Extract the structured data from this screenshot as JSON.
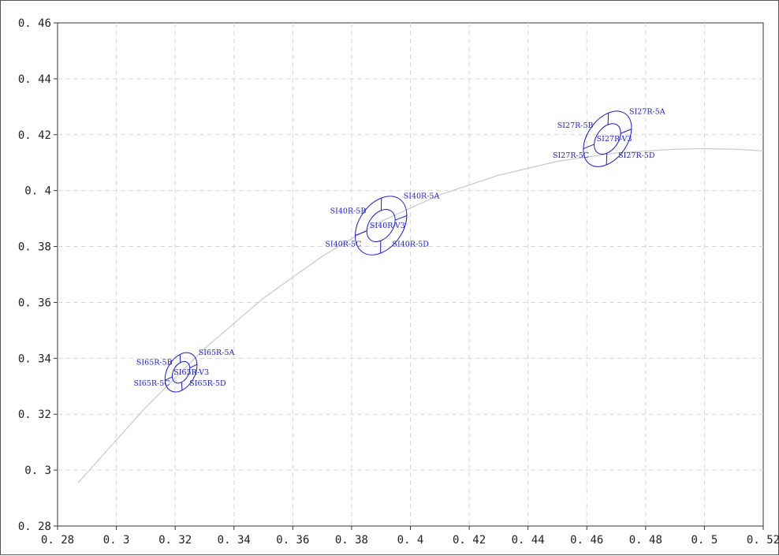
{
  "chart_data": {
    "type": "scatter",
    "title": "",
    "xlabel": "",
    "ylabel": "",
    "xlim": [
      0.28,
      0.52
    ],
    "ylim": [
      0.28,
      0.46
    ],
    "xticks": [
      "0. 28",
      "0. 3",
      "0. 32",
      "0. 34",
      "0. 36",
      "0. 38",
      "0. 4",
      "0. 42",
      "0. 44",
      "0. 46",
      "0. 48",
      "0. 5",
      "0. 52"
    ],
    "yticks": [
      "0. 28",
      "0. 3",
      "0. 32",
      "0. 34",
      "0. 36",
      "0. 38",
      "0. 4",
      "0. 42",
      "0. 44",
      "0. 46"
    ],
    "grid": true,
    "curve": {
      "color": "#c8c8c8",
      "points": [
        [
          0.287,
          0.2955
        ],
        [
          0.31,
          0.3225
        ],
        [
          0.33,
          0.3435
        ],
        [
          0.35,
          0.3615
        ],
        [
          0.37,
          0.3765
        ],
        [
          0.39,
          0.389
        ],
        [
          0.41,
          0.3985
        ],
        [
          0.43,
          0.4055
        ],
        [
          0.45,
          0.4105
        ],
        [
          0.47,
          0.4135
        ],
        [
          0.49,
          0.4148
        ],
        [
          0.5,
          0.415
        ],
        [
          0.51,
          0.4148
        ],
        [
          0.52,
          0.4142
        ]
      ]
    },
    "regions": [
      {
        "center": [
          0.322,
          0.335
        ],
        "rx": 0.0072,
        "ry": 0.0035,
        "angle_deg": -60,
        "labels": [
          "SI65R-5A",
          "SI65R-5B",
          "SI65R-5C",
          "SI65R-5D",
          "SI65R-V3"
        ]
      },
      {
        "center": [
          0.39,
          0.3875
        ],
        "rx": 0.011,
        "ry": 0.0055,
        "angle_deg": -55,
        "labels": [
          "SI40R-5A",
          "SI40R-5B",
          "SI40R-5C",
          "SI40R-5D",
          "SI40R-V3"
        ]
      },
      {
        "center": [
          0.467,
          0.4185
        ],
        "rx": 0.0105,
        "ry": 0.005,
        "angle_deg": -55,
        "labels": [
          "SI27R-5A",
          "SI27R-5B",
          "SI27R-5C",
          "SI27R-5D",
          "SI27R-V3"
        ]
      }
    ],
    "colors": {
      "region": "#1a1ad6",
      "grid": "#d8d8d8",
      "axis": "#333333"
    }
  }
}
